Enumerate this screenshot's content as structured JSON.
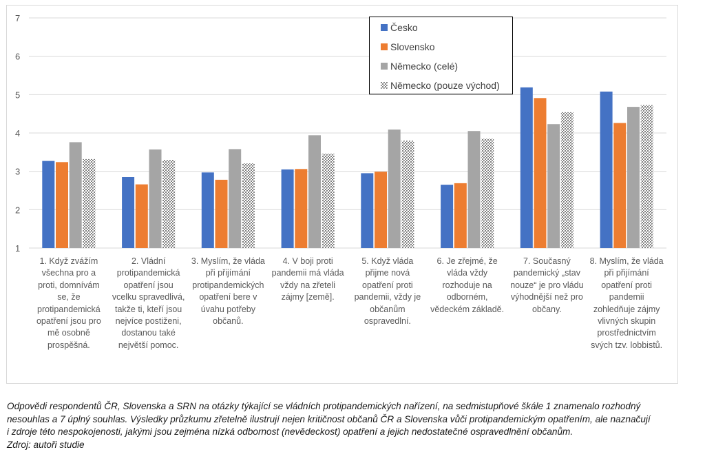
{
  "chart_data": {
    "type": "bar",
    "title": "",
    "xlabel": "",
    "ylabel": "",
    "ylim": [
      1,
      7
    ],
    "yticks": [
      "1",
      "2",
      "3",
      "4",
      "5",
      "6",
      "7"
    ],
    "grid": true,
    "legend_position": "top-right",
    "categories": [
      "1. Když zvážím všechna pro a proti, domnívám se, že protipandemická opatření jsou pro mě osobně prospěšná.",
      "2. Vládní protipandemická opatření jsou vcelku spravedlivá, takže ti, kteří jsou nejvíce postiženi, dostanou také největší pomoc.",
      "3. Myslím, že vláda při přijímání protipandemických opatření bere v úvahu potřeby občanů.",
      "4. V boji proti pandemii má vláda vždy na zřeteli zájmy [země].",
      "5. Když vláda přijme nová opatření proti pandemii, vždy je občanům ospravedlní.",
      "6. Je zřejmé, že vláda vždy rozhoduje na odborném, vědeckém základě.",
      "7. Současný pandemický „stav nouze“ je pro vládu výhodnější než pro občany.",
      "8. Myslím, že vláda při přijímání opatření proti pandemii zohledňuje zájmy vlivných skupin prostřednictvím svých tzv. lobbistů."
    ],
    "category_label_lines": [
      [
        "1. Když zvážím",
        "všechna pro a",
        "proti, domnívám",
        "se, že",
        "protipandemická",
        "opatření jsou pro",
        "mě osobně",
        "prospěšná."
      ],
      [
        "2. Vládní",
        "protipandemická",
        "opatření jsou",
        "vcelku spravedlivá,",
        "takže ti, kteří jsou",
        "nejvíce postiženi,",
        "dostanou také",
        "největší pomoc."
      ],
      [
        "3. Myslím, že vláda",
        "při přijímání",
        "protipandemických",
        "opatření bere v",
        "úvahu potřeby",
        "občanů."
      ],
      [
        "4. V boji proti",
        "pandemii má vláda",
        "vždy na zřeteli",
        "zájmy [země]."
      ],
      [
        "5. Když vláda",
        "přijme nová",
        "opatření proti",
        "pandemii, vždy je",
        "občanům",
        "ospravedlní."
      ],
      [
        "6. Je zřejmé, že",
        "vláda vždy",
        "rozhoduje na",
        "odborném,",
        "vědeckém základě."
      ],
      [
        "7. Současný",
        "pandemický „stav",
        "nouze“ je pro vládu",
        "výhodnější než pro",
        "občany."
      ],
      [
        "8. Myslím, že vláda",
        "při přijímání",
        "opatření proti",
        "pandemii",
        "zohledňuje zájmy",
        "vlivných skupin",
        "prostřednictvím",
        "svých tzv. lobbistů."
      ]
    ],
    "series": [
      {
        "name": "Česko",
        "color": "#4472c4",
        "pattern": false,
        "values": [
          3.27,
          2.85,
          2.97,
          3.05,
          2.95,
          2.65,
          5.19,
          5.08
        ]
      },
      {
        "name": "Slovensko",
        "color": "#ed7d31",
        "pattern": false,
        "values": [
          3.24,
          2.66,
          2.78,
          3.06,
          2.99,
          2.69,
          4.91,
          4.26
        ]
      },
      {
        "name": "Německo (celé)",
        "color": "#a5a5a5",
        "pattern": false,
        "values": [
          3.76,
          3.57,
          3.58,
          3.94,
          4.09,
          4.05,
          4.23,
          4.68
        ]
      },
      {
        "name": "Německo (pouze východ)",
        "color": "#7f7f7f",
        "pattern": true,
        "values": [
          3.32,
          3.3,
          3.21,
          3.46,
          3.8,
          3.85,
          4.54,
          4.73
        ]
      }
    ]
  },
  "caption": {
    "lines": [
      "Odpovědi respondentů ČR, Slovenska a SRN na otázky týkající se vládních protipandemických nařízení, na sedmistupňové škále 1 znamenalo rozhodný",
      "nesouhlas a 7 úplný souhlas. Výsledky průzkumu zřetelně ilustrují nejen kritičnost občanů ČR a Slovenska vůči protipandemickým opatřením, ale naznačují",
      "i zdroje této nespokojenosti, jakými jsou zejména nízká odbornost (nevědeckost) opatření a jejich nedostatečné ospravedlnění občanům."
    ],
    "source": "Zdroj: autoři studie"
  }
}
